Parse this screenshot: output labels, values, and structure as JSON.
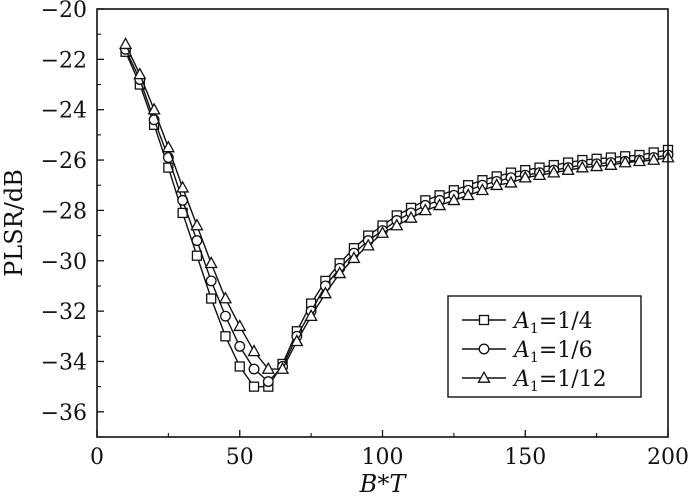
{
  "chart_data": {
    "type": "line",
    "title": "",
    "xlabel": {
      "var1": "B",
      "sep": "*",
      "var2": "T"
    },
    "ylabel": "PLSR/dB",
    "xlim": [
      0,
      200
    ],
    "ylim": [
      -37,
      -20
    ],
    "xticks": [
      0,
      50,
      100,
      150,
      200
    ],
    "yticks": [
      -36,
      -34,
      -32,
      -30,
      -28,
      -26,
      -24,
      -22,
      -20
    ],
    "xtick_labels": [
      "0",
      "50",
      "100",
      "150",
      "200"
    ],
    "ytick_labels": [
      "−36",
      "−34",
      "−32",
      "−30",
      "−28",
      "−26",
      "−24",
      "−22",
      "−20"
    ],
    "grid": false,
    "legend_position": "bottom-right",
    "x": [
      10,
      15,
      20,
      25,
      30,
      35,
      40,
      45,
      50,
      55,
      60,
      65,
      70,
      75,
      80,
      85,
      90,
      95,
      100,
      105,
      110,
      115,
      120,
      125,
      130,
      135,
      140,
      145,
      150,
      155,
      160,
      165,
      170,
      175,
      180,
      185,
      190,
      195,
      200
    ],
    "series": [
      {
        "name": {
          "symbol": "A",
          "sub": "1",
          "rest": "=1/4"
        },
        "marker": "square",
        "values": [
          -21.7,
          -23.0,
          -24.6,
          -26.3,
          -28.1,
          -29.8,
          -31.5,
          -33.0,
          -34.2,
          -35.0,
          -35.0,
          -34.1,
          -32.8,
          -31.7,
          -30.8,
          -30.1,
          -29.5,
          -29.0,
          -28.6,
          -28.2,
          -27.9,
          -27.6,
          -27.4,
          -27.2,
          -27.0,
          -26.8,
          -26.65,
          -26.5,
          -26.4,
          -26.3,
          -26.2,
          -26.1,
          -26.0,
          -25.95,
          -25.9,
          -25.85,
          -25.8,
          -25.7,
          -25.6
        ]
      },
      {
        "name": {
          "symbol": "A",
          "sub": "1",
          "rest": "=1/6"
        },
        "marker": "circle",
        "values": [
          -21.6,
          -22.8,
          -24.4,
          -25.9,
          -27.6,
          -29.2,
          -30.8,
          -32.2,
          -33.4,
          -34.3,
          -34.8,
          -34.2,
          -33.0,
          -32.0,
          -31.0,
          -30.3,
          -29.7,
          -29.2,
          -28.8,
          -28.4,
          -28.1,
          -27.8,
          -27.6,
          -27.4,
          -27.2,
          -27.0,
          -26.85,
          -26.7,
          -26.6,
          -26.5,
          -26.4,
          -26.3,
          -26.2,
          -26.15,
          -26.1,
          -26.05,
          -26.0,
          -25.9,
          -25.8
        ]
      },
      {
        "name": {
          "symbol": "A",
          "sub": "1",
          "rest": "=1/12"
        },
        "marker": "triangle",
        "values": [
          -21.4,
          -22.6,
          -24.0,
          -25.5,
          -27.1,
          -28.6,
          -30.1,
          -31.5,
          -32.6,
          -33.6,
          -34.3,
          -34.3,
          -33.2,
          -32.2,
          -31.3,
          -30.5,
          -29.9,
          -29.4,
          -28.9,
          -28.6,
          -28.3,
          -28.0,
          -27.8,
          -27.6,
          -27.4,
          -27.2,
          -27.0,
          -26.9,
          -26.7,
          -26.6,
          -26.5,
          -26.4,
          -26.3,
          -26.25,
          -26.2,
          -26.1,
          -26.05,
          -26.0,
          -25.9
        ]
      }
    ]
  }
}
